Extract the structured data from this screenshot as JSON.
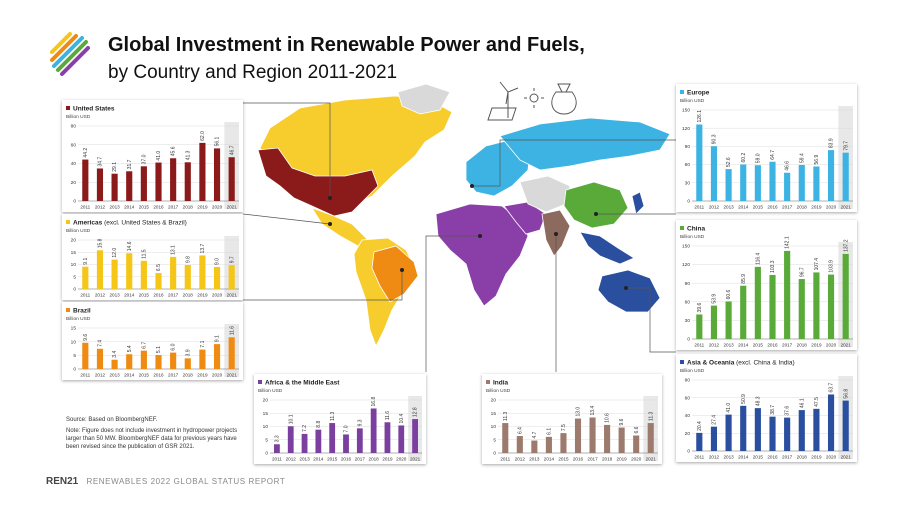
{
  "header": {
    "title": "Global Investment in Renewable Power and Fuels,",
    "subtitle": "by Country and Region 2011-2021"
  },
  "notes": {
    "source": "Source: Based on BloombergNEF.",
    "note": "Note: Figure does not include investment in hydropower projects larger than 50 MW. BloombergNEF data for previous years have been revised since the publication of GSR 2021."
  },
  "footer": {
    "logo_text": "REN21",
    "report": "RENEWABLES 2022 GLOBAL STATUS REPORT"
  },
  "chart_data": [
    {
      "id": "us",
      "type": "bar",
      "title": "United States",
      "ylabel": "Billion USD",
      "color": "#8b1a1a",
      "categories": [
        "2011",
        "2012",
        "2013",
        "2014",
        "2015",
        "2016",
        "2017",
        "2018",
        "2019",
        "2020",
        "2021"
      ],
      "values": [
        44.2,
        34.7,
        29.1,
        31.7,
        37.0,
        41.0,
        45.6,
        41.3,
        62.0,
        56.1,
        46.7
      ],
      "labels": [
        "44.2",
        "34.7",
        "29.1",
        "31.7",
        "37.0",
        "41.0",
        "45.6",
        "41.3",
        "62.0",
        "56.1",
        "46.7"
      ],
      "ylim": [
        0,
        80
      ],
      "yticks": [
        "0",
        "20",
        "40",
        "60",
        "80"
      ]
    },
    {
      "id": "americas",
      "type": "bar",
      "title": "Americas",
      "title_note": "(excl. United States & Brazil)",
      "ylabel": "Billion USD",
      "color": "#f5c518",
      "categories": [
        "2011",
        "2012",
        "2013",
        "2014",
        "2015",
        "2016",
        "2017",
        "2018",
        "2019",
        "2020",
        "2021"
      ],
      "values": [
        9.1,
        15.8,
        12.0,
        14.6,
        11.5,
        6.5,
        13.1,
        9.8,
        13.7,
        9.0,
        9.7
      ],
      "labels": [
        "9.1",
        "15.8",
        "12.0",
        "14.6",
        "11.5",
        "6.5",
        "13.1",
        "9.8",
        "13.7",
        "9.0",
        "9.7"
      ],
      "ylim": [
        0,
        20
      ],
      "yticks": [
        "0",
        "5",
        "10",
        "15",
        "20"
      ]
    },
    {
      "id": "brazil",
      "type": "bar",
      "title": "Brazil",
      "ylabel": "Billion USD",
      "color": "#ef8a12",
      "categories": [
        "2011",
        "2012",
        "2013",
        "2014",
        "2015",
        "2016",
        "2017",
        "2018",
        "2019",
        "2020",
        "2021"
      ],
      "values": [
        9.6,
        7.4,
        3.4,
        5.4,
        6.7,
        5.1,
        6.0,
        3.9,
        7.1,
        9.1,
        11.6
      ],
      "labels": [
        "9.6",
        "7.4",
        "3.4",
        "5.4",
        "6.7",
        "5.1",
        "6.0",
        "3.9",
        "7.1",
        "9.1",
        "11.6"
      ],
      "ylim": [
        0,
        15
      ],
      "yticks": [
        "0",
        "5",
        "10",
        "15"
      ]
    },
    {
      "id": "africa",
      "type": "bar",
      "title": "Africa & the Middle East",
      "ylabel": "Billion USD",
      "color": "#7b3fa0",
      "categories": [
        "2011",
        "2012",
        "2013",
        "2014",
        "2015",
        "2016",
        "2017",
        "2018",
        "2019",
        "2020",
        "2021"
      ],
      "values": [
        3.3,
        10.1,
        7.2,
        8.8,
        11.3,
        7.0,
        9.3,
        16.8,
        11.6,
        10.4,
        12.8
      ],
      "labels": [
        "3.3",
        "10.1",
        "7.2",
        "8.8",
        "11.3",
        "7.0",
        "9.3",
        "16.8",
        "11.6",
        "10.4",
        "12.8"
      ],
      "ylim": [
        0,
        20
      ],
      "yticks": [
        "0",
        "5",
        "10",
        "15",
        "20"
      ]
    },
    {
      "id": "india",
      "type": "bar",
      "title": "India",
      "ylabel": "Billion USD",
      "color": "#9c7b6e",
      "categories": [
        "2011",
        "2012",
        "2013",
        "2014",
        "2015",
        "2016",
        "2017",
        "2018",
        "2019",
        "2020",
        "2021"
      ],
      "values": [
        11.3,
        6.4,
        4.7,
        6.1,
        7.5,
        13.0,
        13.4,
        10.6,
        9.6,
        6.6,
        11.3
      ],
      "labels": [
        "11.3",
        "6.4",
        "4.7",
        "6.1",
        "7.5",
        "13.0",
        "13.4",
        "10.6",
        "9.6",
        "6.6",
        "11.3"
      ],
      "ylim": [
        0,
        20
      ],
      "yticks": [
        "0",
        "5",
        "10",
        "15",
        "20"
      ]
    },
    {
      "id": "europe",
      "type": "bar",
      "title": "Europe",
      "ylabel": "Billion USD",
      "color": "#3db3e3",
      "categories": [
        "2011",
        "2012",
        "2013",
        "2014",
        "2015",
        "2016",
        "2017",
        "2018",
        "2019",
        "2020",
        "2021"
      ],
      "values": [
        126.1,
        90.3,
        52.6,
        60.2,
        59.0,
        64.7,
        46.6,
        59.4,
        56.9,
        83.9,
        79.7
      ],
      "labels": [
        "126.1",
        "90.3",
        "52.6",
        "60.2",
        "59.0",
        "64.7",
        "46.6",
        "59.4",
        "56.9",
        "83.9",
        "79.7"
      ],
      "ylim": [
        0,
        150
      ],
      "yticks": [
        "0",
        "30",
        "60",
        "90",
        "120",
        "150"
      ]
    },
    {
      "id": "china",
      "type": "bar",
      "title": "China",
      "ylabel": "Billion USD",
      "color": "#5aaa3a",
      "categories": [
        "2011",
        "2012",
        "2013",
        "2014",
        "2015",
        "2016",
        "2017",
        "2018",
        "2019",
        "2020",
        "2021"
      ],
      "values": [
        39.6,
        53.9,
        60.6,
        85.9,
        116.4,
        103.3,
        142.1,
        96.7,
        107.4,
        103.9,
        137.2
      ],
      "labels": [
        "39.6",
        "53.9",
        "60.6",
        "85.9",
        "116.4",
        "103.3",
        "142.1",
        "96.7",
        "107.4",
        "103.9",
        "137.2"
      ],
      "ylim": [
        0,
        150
      ],
      "yticks": [
        "0",
        "30",
        "60",
        "90",
        "120",
        "150"
      ]
    },
    {
      "id": "asia",
      "type": "bar",
      "title": "Asia & Oceania",
      "title_note": "(excl. China & India)",
      "ylabel": "Billion USD",
      "color": "#2a4f9e",
      "categories": [
        "2011",
        "2012",
        "2013",
        "2014",
        "2015",
        "2016",
        "2017",
        "2018",
        "2019",
        "2020",
        "2021"
      ],
      "values": [
        20.4,
        27.4,
        41.0,
        50.9,
        48.3,
        38.7,
        37.6,
        46.1,
        47.5,
        63.7,
        56.8
      ],
      "labels": [
        "20.4",
        "27.4",
        "41.0",
        "50.9",
        "48.3",
        "38.7",
        "37.6",
        "46.1",
        "47.5",
        "63.7",
        "56.8"
      ],
      "ylim": [
        0,
        80
      ],
      "yticks": [
        "0",
        "20",
        "40",
        "60",
        "80"
      ]
    }
  ]
}
